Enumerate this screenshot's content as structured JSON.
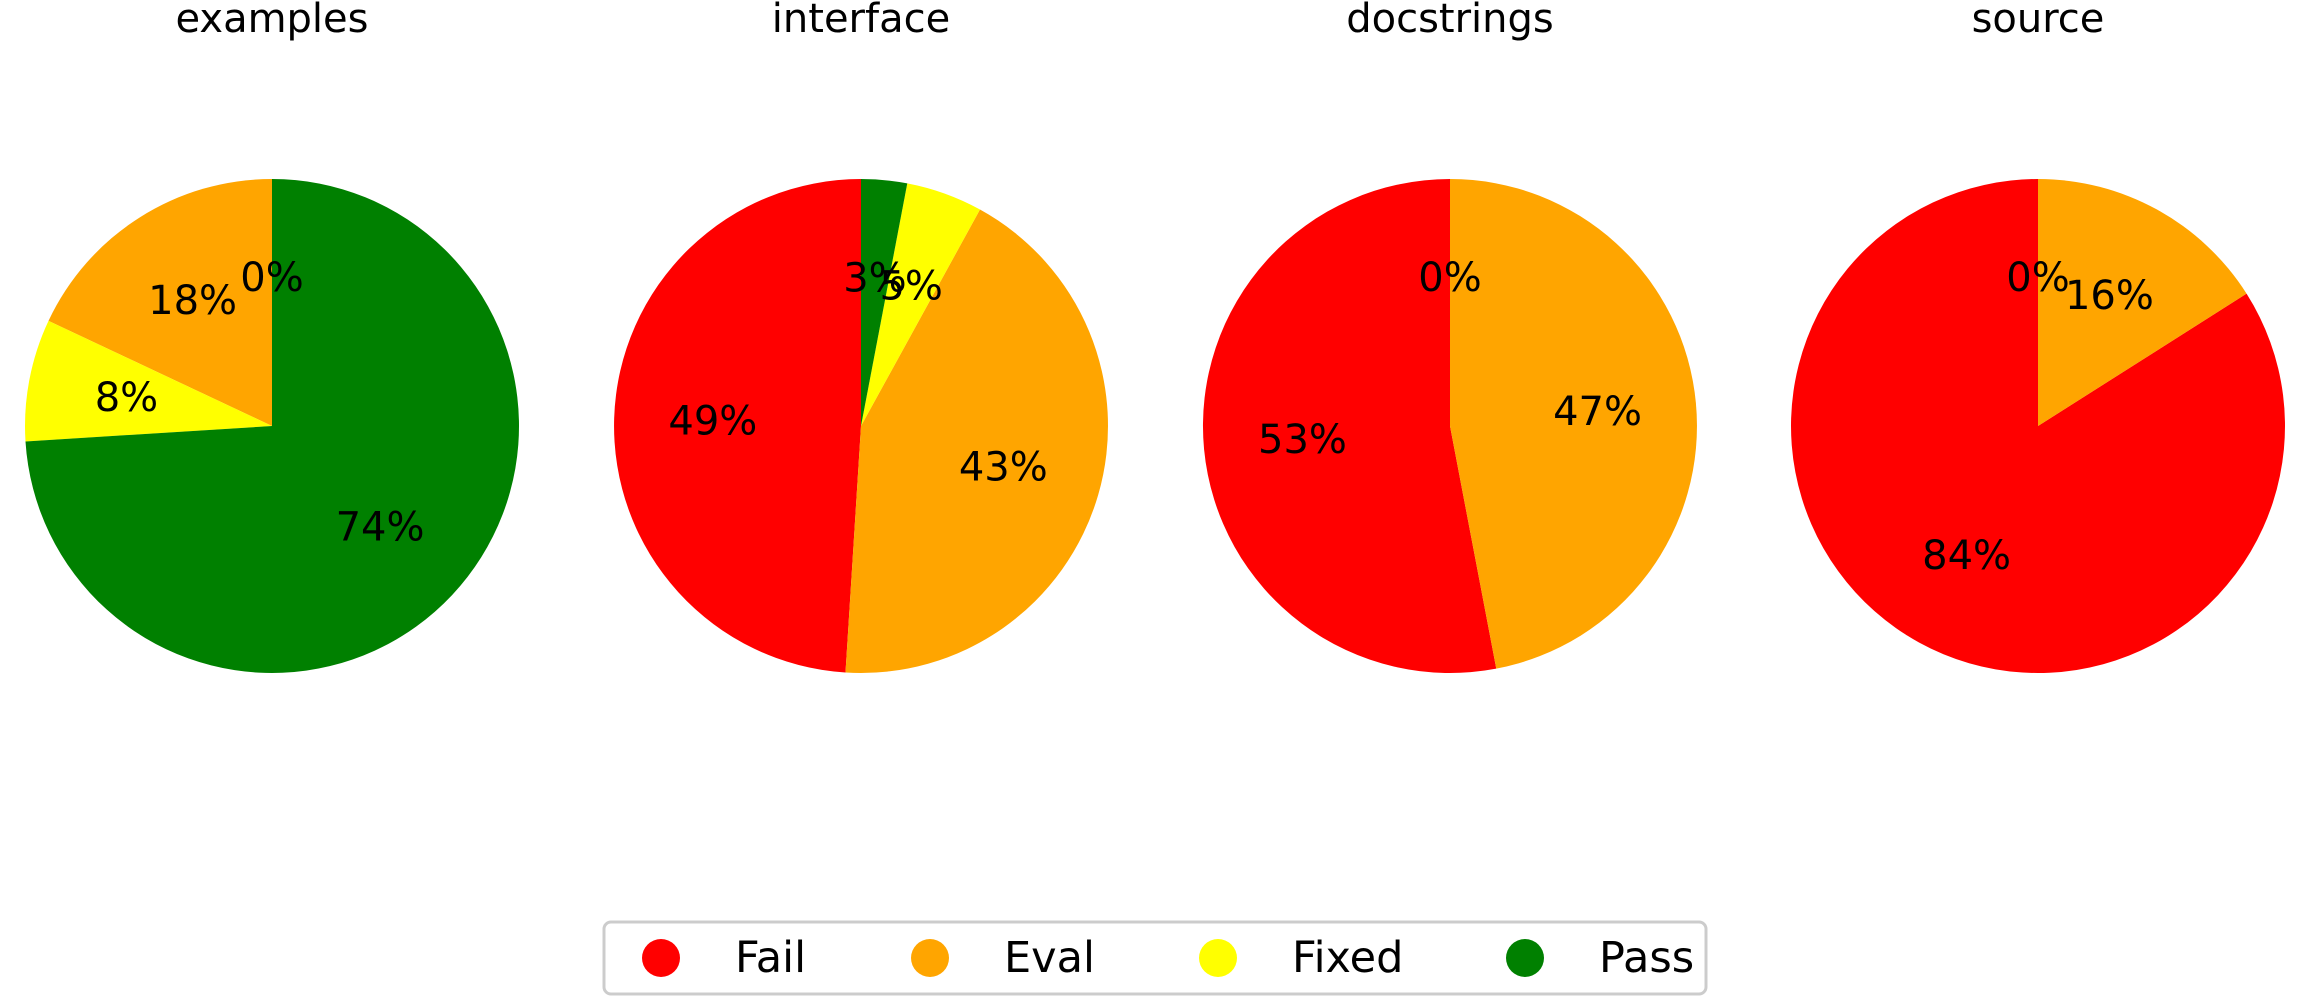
{
  "chart_data": {
    "type": "pie",
    "legend": {
      "placement": "bottom-center",
      "entries": [
        {
          "label": "Fail",
          "color": "#ff0000"
        },
        {
          "label": "Eval",
          "color": "#ffa500"
        },
        {
          "label": "Fixed",
          "color": "#ffff00"
        },
        {
          "label": "Pass",
          "color": "#008000"
        }
      ]
    },
    "pies": [
      {
        "title": "examples",
        "slices": [
          {
            "category": "Fail",
            "value": 0,
            "label": "0%"
          },
          {
            "category": "Eval",
            "value": 18,
            "label": "18%"
          },
          {
            "category": "Fixed",
            "value": 8,
            "label": "8%"
          },
          {
            "category": "Pass",
            "value": 74,
            "label": "74%"
          }
        ]
      },
      {
        "title": "interface",
        "slices": [
          {
            "category": "Fail",
            "value": 49,
            "label": "49%"
          },
          {
            "category": "Eval",
            "value": 43,
            "label": "43%"
          },
          {
            "category": "Fixed",
            "value": 5,
            "label": "5%"
          },
          {
            "category": "Pass",
            "value": 3,
            "label": "3%"
          }
        ]
      },
      {
        "title": "docstrings",
        "slices": [
          {
            "category": "Fail",
            "value": 53,
            "label": "53%"
          },
          {
            "category": "Eval",
            "value": 47,
            "label": "47%"
          },
          {
            "category": "Fixed",
            "value": 0,
            "label": "0%"
          }
        ]
      },
      {
        "title": "source",
        "slices": [
          {
            "category": "Fail",
            "value": 84,
            "label": "84%"
          },
          {
            "category": "Eval",
            "value": 16,
            "label": "16%"
          },
          {
            "category": "Fixed",
            "value": 0,
            "label": "0%"
          }
        ]
      }
    ]
  }
}
